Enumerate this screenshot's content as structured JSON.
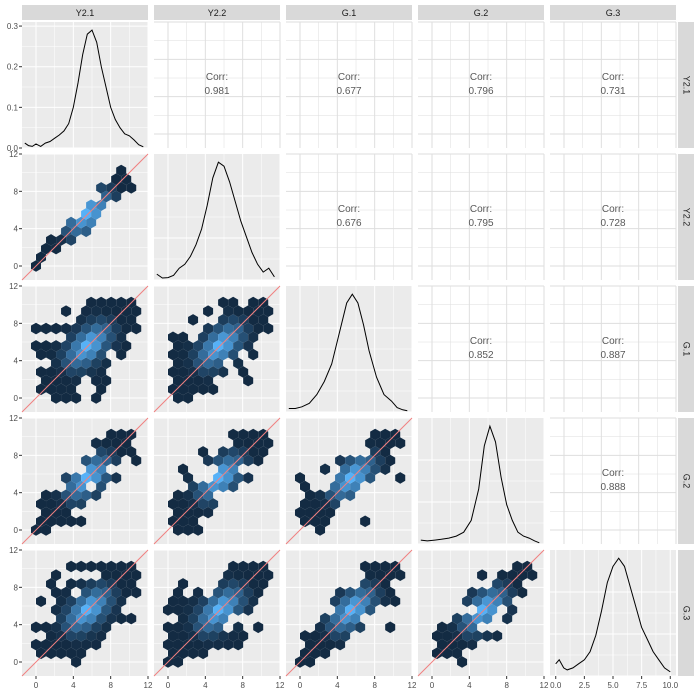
{
  "chart_data": {
    "type": "scatter-matrix",
    "variables": [
      "Y2.1",
      "Y2.2",
      "G.1",
      "G.2",
      "G.3"
    ],
    "corr_label": "Corr:",
    "correlations": [
      {
        "row": 0,
        "col": 1,
        "value": "0.981"
      },
      {
        "row": 0,
        "col": 2,
        "value": "0.677"
      },
      {
        "row": 0,
        "col": 3,
        "value": "0.796"
      },
      {
        "row": 0,
        "col": 4,
        "value": "0.731"
      },
      {
        "row": 1,
        "col": 2,
        "value": "0.676"
      },
      {
        "row": 1,
        "col": 3,
        "value": "0.795"
      },
      {
        "row": 1,
        "col": 4,
        "value": "0.728"
      },
      {
        "row": 2,
        "col": 3,
        "value": "0.852"
      },
      {
        "row": 2,
        "col": 4,
        "value": "0.887"
      },
      {
        "row": 3,
        "col": 4,
        "value": "0.888"
      }
    ],
    "density_top": {
      "xlim": [
        -1.5,
        12
      ],
      "ylim": [
        0,
        0.31
      ],
      "ytick_values": [
        0,
        0.1,
        0.2,
        0.3
      ],
      "ytick_labels": [
        "0.0",
        "0.1",
        "0.2",
        "0.3"
      ]
    },
    "hex_axes": {
      "lim": [
        -1.5,
        12
      ],
      "tick_values": [
        0,
        4,
        8,
        12
      ],
      "tick_labels": [
        "0",
        "4",
        "8",
        "12"
      ]
    },
    "bottom_x_ticks": [
      {
        "values": [
          0,
          4,
          8,
          12
        ],
        "labels": [
          "0",
          "4",
          "8",
          "12"
        ]
      },
      {
        "values": [
          0,
          4,
          8,
          12
        ],
        "labels": [
          "0",
          "4",
          "8",
          "12"
        ]
      },
      {
        "values": [
          0,
          4,
          8,
          12
        ],
        "labels": [
          "0",
          "4",
          "8",
          "12"
        ]
      },
      {
        "values": [
          0,
          4,
          8,
          12
        ],
        "labels": [
          "0",
          "4",
          "8",
          "12"
        ]
      },
      {
        "values": [
          0,
          2.5,
          5,
          7.5,
          10
        ],
        "labels": [
          "0.0",
          "2.5",
          "5.0",
          "7.5",
          "10.0"
        ],
        "lim": [
          -0.5,
          10.5
        ]
      }
    ],
    "densities": [
      {
        "x": [
          -1.2,
          -0.8,
          -0.4,
          0,
          0.5,
          1,
          1.5,
          2,
          2.5,
          3,
          3.5,
          4,
          4.5,
          5,
          5.5,
          6,
          6.5,
          7,
          7.5,
          8,
          8.5,
          9,
          9.5,
          10,
          10.5,
          11,
          11.5
        ],
        "y": [
          0.012,
          0.006,
          0.004,
          0.01,
          0.004,
          0.012,
          0.016,
          0.024,
          0.032,
          0.042,
          0.06,
          0.1,
          0.16,
          0.23,
          0.28,
          0.29,
          0.26,
          0.2,
          0.15,
          0.1,
          0.07,
          0.05,
          0.035,
          0.03,
          0.02,
          0.008,
          0.003
        ]
      },
      {
        "x": [
          -1.2,
          -0.6,
          0,
          0.6,
          1.2,
          1.8,
          2.4,
          3,
          3.6,
          4.2,
          4.8,
          5.4,
          6,
          6.6,
          7.2,
          7.8,
          8.4,
          9,
          9.6,
          10.2,
          10.8,
          11.4
        ],
        "y": [
          0.015,
          0.005,
          0.006,
          0.012,
          0.03,
          0.04,
          0.06,
          0.09,
          0.13,
          0.19,
          0.26,
          0.3,
          0.29,
          0.25,
          0.2,
          0.15,
          0.11,
          0.07,
          0.04,
          0.02,
          0.03,
          0.008
        ]
      },
      {
        "x": [
          -1.2,
          -0.5,
          0.2,
          1,
          1.8,
          2.6,
          3.4,
          4.2,
          5,
          5.6,
          6.2,
          6.8,
          7.4,
          8.2,
          9,
          9.8,
          10.4,
          11,
          11.5
        ],
        "y": [
          0.008,
          0.008,
          0.012,
          0.02,
          0.04,
          0.07,
          0.11,
          0.18,
          0.25,
          0.27,
          0.25,
          0.2,
          0.14,
          0.08,
          0.04,
          0.025,
          0.01,
          0.005,
          0.003
        ]
      },
      {
        "x": [
          -1.2,
          -0.5,
          0.3,
          1,
          1.8,
          2.6,
          3.4,
          4.2,
          5,
          5.6,
          6.2,
          6.8,
          7.4,
          8,
          8.6,
          9.2,
          9.8,
          10.4,
          11,
          11.5
        ],
        "y": [
          0.01,
          0.008,
          0.01,
          0.012,
          0.015,
          0.02,
          0.03,
          0.06,
          0.14,
          0.25,
          0.3,
          0.26,
          0.17,
          0.1,
          0.06,
          0.03,
          0.02,
          0.015,
          0.008,
          0.003
        ]
      },
      {
        "x": [
          0,
          0.3,
          0.7,
          1,
          1.5,
          2,
          2.5,
          3,
          3.5,
          4,
          4.5,
          5,
          5.5,
          6,
          6.5,
          7,
          7.5,
          8,
          8.5,
          9,
          9.5,
          10
        ],
        "y": [
          0.03,
          0.04,
          0.02,
          0.015,
          0.02,
          0.03,
          0.04,
          0.06,
          0.1,
          0.16,
          0.23,
          0.27,
          0.29,
          0.27,
          0.22,
          0.17,
          0.12,
          0.09,
          0.06,
          0.04,
          0.02,
          0.01
        ]
      }
    ],
    "hex_scatter": [
      {
        "row": 1,
        "col": 0,
        "shape": "tight"
      },
      {
        "row": 2,
        "col": 0,
        "shape": "wide"
      },
      {
        "row": 2,
        "col": 1,
        "shape": "wide"
      },
      {
        "row": 3,
        "col": 0,
        "shape": "medium"
      },
      {
        "row": 3,
        "col": 1,
        "shape": "medium"
      },
      {
        "row": 3,
        "col": 2,
        "shape": "medium"
      },
      {
        "row": 4,
        "col": 0,
        "shape": "wide"
      },
      {
        "row": 4,
        "col": 1,
        "shape": "wide"
      },
      {
        "row": 4,
        "col": 2,
        "shape": "medium"
      },
      {
        "row": 4,
        "col": 3,
        "shape": "medium"
      }
    ],
    "colors": {
      "panel_bg": "#ebebeb",
      "grid": "#ffffff",
      "strip_bg": "#d9d9d9",
      "strip_text": "#1a1a1a",
      "tick_text": "#4d4d4d",
      "corr_text": "#595959",
      "density_line": "#000000",
      "identity_line": "#f08080",
      "hex_low": "#132b43",
      "hex_high": "#56b1f7",
      "empty_panel_grid": "#dedede"
    }
  }
}
